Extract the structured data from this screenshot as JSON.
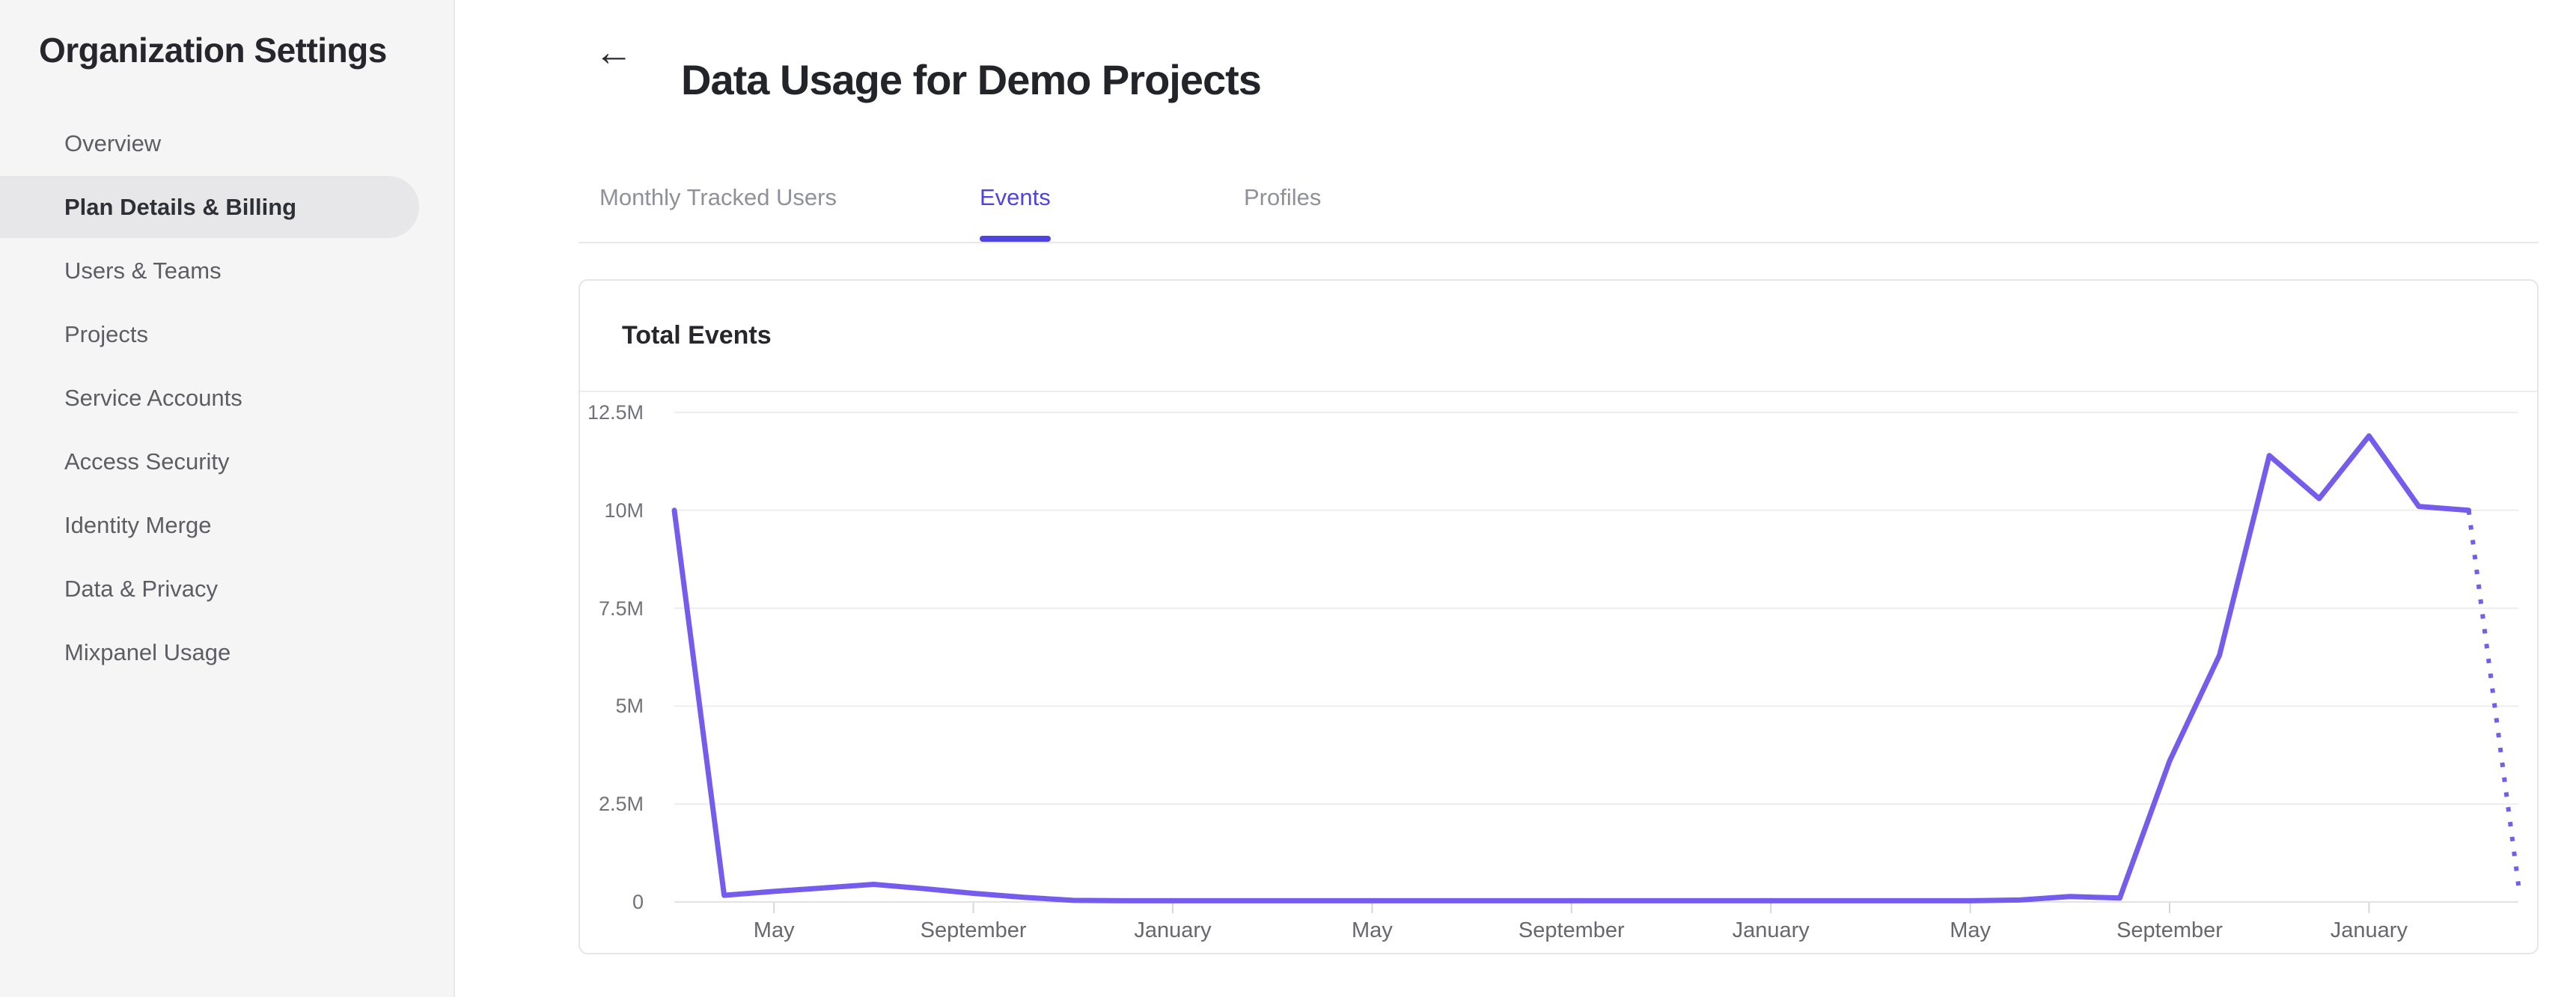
{
  "sidebar": {
    "title": "Organization Settings",
    "active_item": "Plan Details & Billing",
    "items": [
      {
        "label": "Overview"
      },
      {
        "label": "Plan Details & Billing"
      },
      {
        "label": "Users & Teams"
      },
      {
        "label": "Projects"
      },
      {
        "label": "Service Accounts"
      },
      {
        "label": "Access Security"
      },
      {
        "label": "Identity Merge"
      },
      {
        "label": "Data & Privacy"
      },
      {
        "label": "Mixpanel Usage"
      }
    ]
  },
  "header": {
    "back_icon": "←",
    "title": "Data Usage for Demo Projects"
  },
  "tabs": {
    "active_tab": "Events",
    "items": [
      {
        "label": "Monthly Tracked Users"
      },
      {
        "label": "Events"
      },
      {
        "label": "Profiles"
      }
    ]
  },
  "colors": {
    "accent": "#4f44e0",
    "chart_line": "#755cec"
  },
  "chart_data": {
    "type": "line",
    "title": "Total Events",
    "ylabel": "",
    "xlabel": "",
    "grid": "horizontal",
    "legend": "none",
    "ylim_millions": [
      0,
      12.5
    ],
    "y_ticks": [
      {
        "label": "0",
        "value_millions": 0
      },
      {
        "label": "2.5M",
        "value_millions": 2.5
      },
      {
        "label": "5M",
        "value_millions": 5
      },
      {
        "label": "7.5M",
        "value_millions": 7.5
      },
      {
        "label": "10M",
        "value_millions": 10
      },
      {
        "label": "12.5M",
        "value_millions": 12.5
      }
    ],
    "x_ticks": [
      {
        "label": "May",
        "month_index": 2
      },
      {
        "label": "September",
        "month_index": 6
      },
      {
        "label": "January",
        "month_index": 10
      },
      {
        "label": "May",
        "month_index": 14
      },
      {
        "label": "September",
        "month_index": 18
      },
      {
        "label": "January",
        "month_index": 22
      },
      {
        "label": "May",
        "month_index": 26
      },
      {
        "label": "September",
        "month_index": 30
      },
      {
        "label": "January",
        "month_index": 34
      }
    ],
    "series": [
      {
        "name": "Total Events",
        "color": "#755cec",
        "last_point_projected": true,
        "values_millions": [
          10.0,
          0.17,
          0.27,
          0.36,
          0.45,
          0.34,
          0.22,
          0.12,
          0.04,
          0.03,
          0.03,
          0.03,
          0.03,
          0.03,
          0.03,
          0.03,
          0.03,
          0.03,
          0.03,
          0.03,
          0.03,
          0.03,
          0.03,
          0.03,
          0.03,
          0.03,
          0.03,
          0.05,
          0.14,
          0.1,
          3.6,
          6.3,
          11.4,
          10.3,
          11.9,
          10.1,
          10.0,
          0.42
        ]
      }
    ]
  }
}
